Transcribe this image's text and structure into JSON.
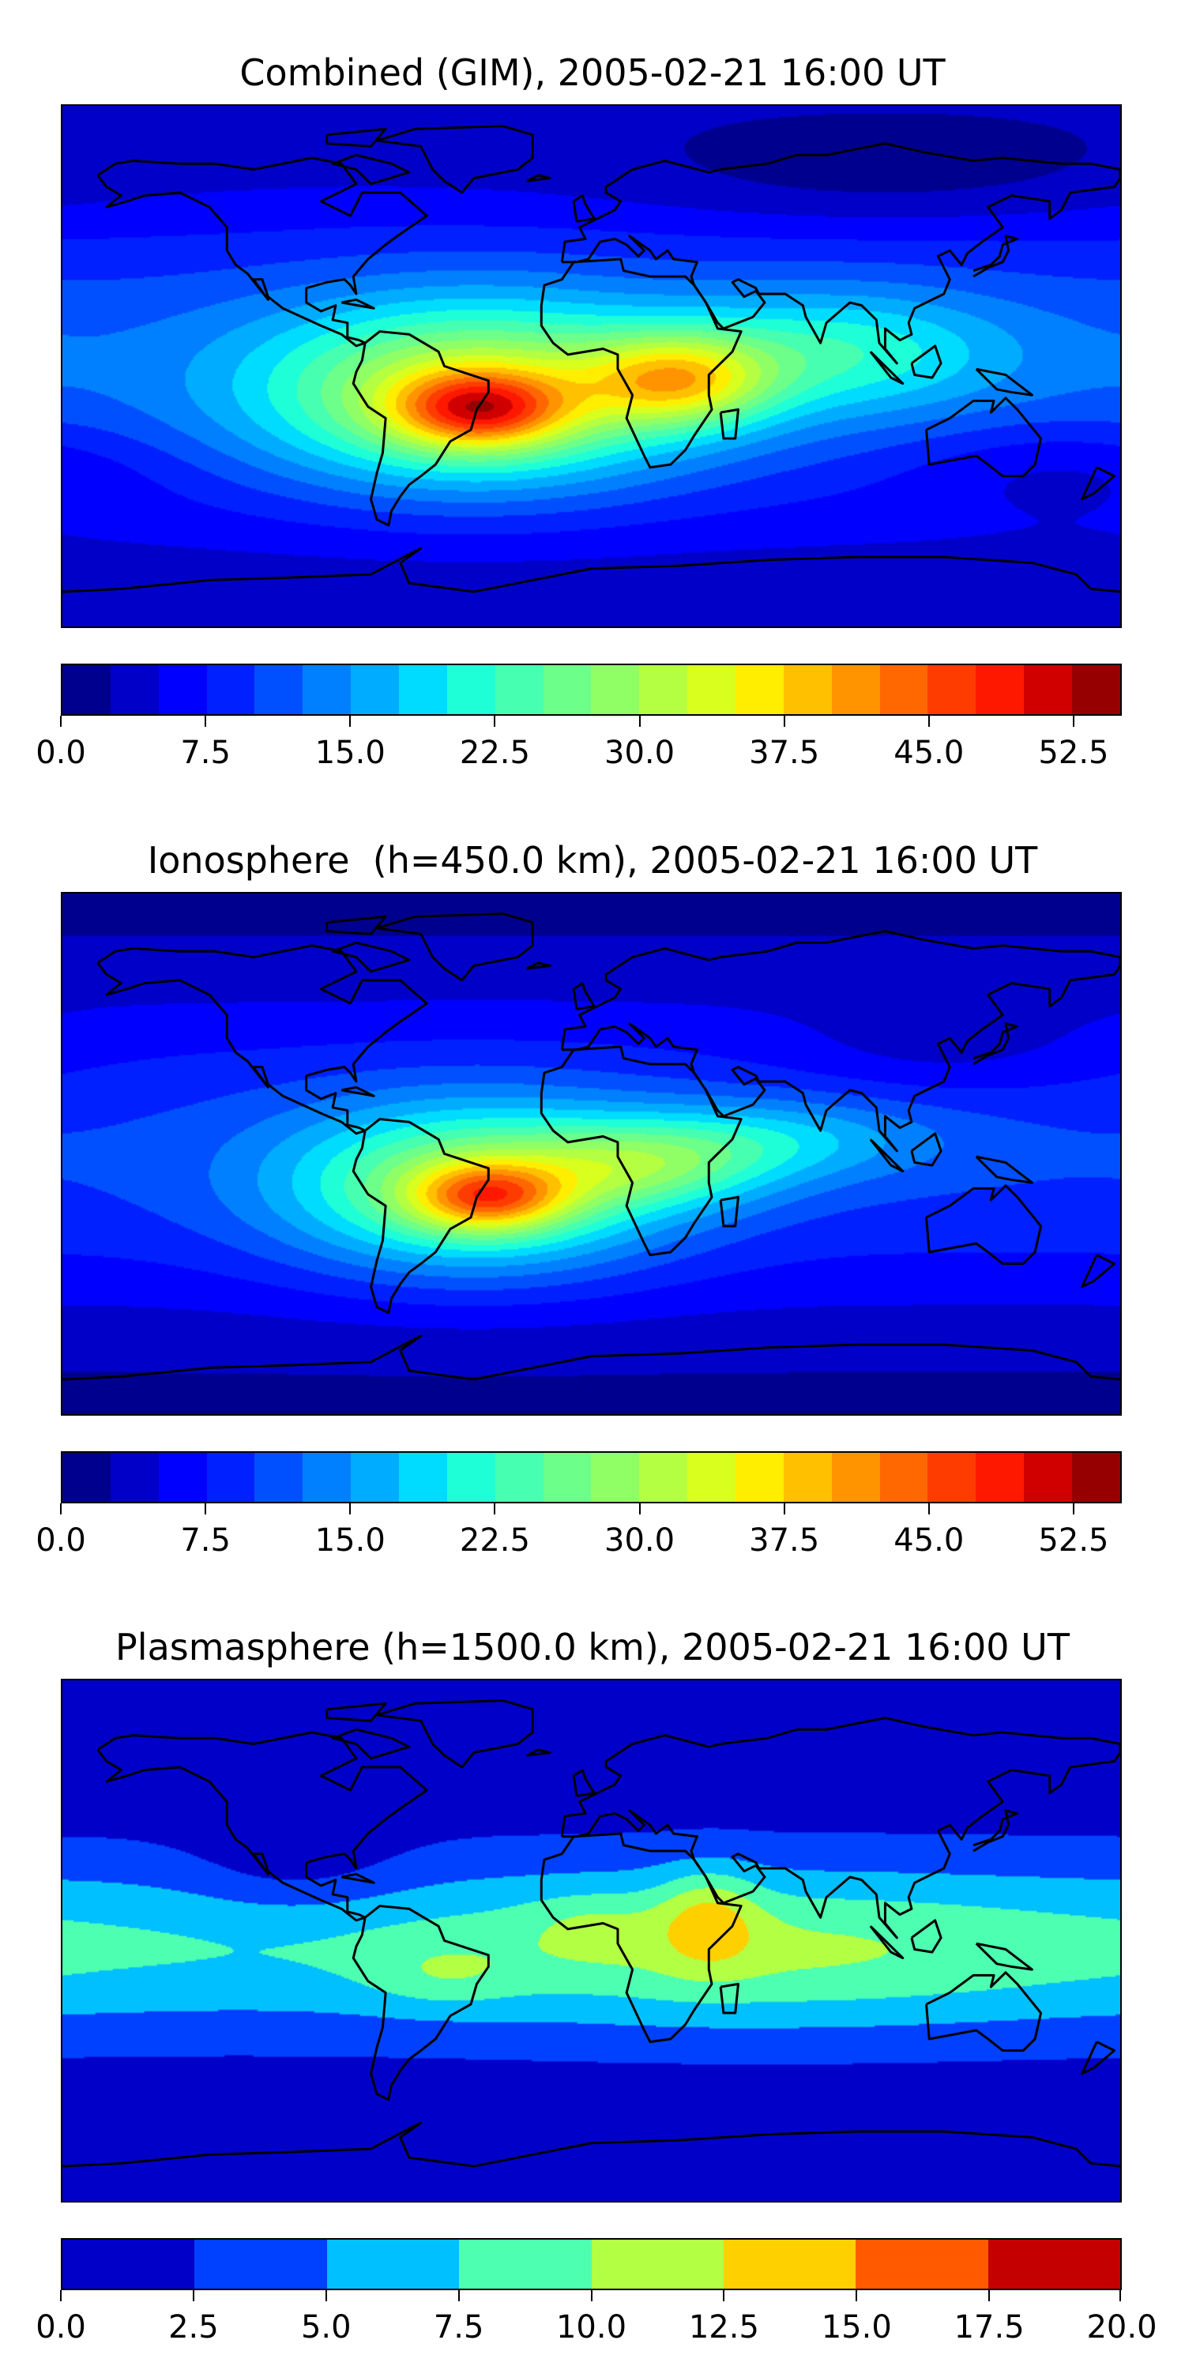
{
  "chart_data": [
    {
      "type": "heatmap",
      "title": "Combined (GIM), 2005-02-21 16:00 UT",
      "projection": "equirectangular world map with coastlines",
      "colorbar": {
        "range": [
          0,
          55
        ],
        "step": 2.5,
        "ticks": [
          "0.0",
          "7.5",
          "15.0",
          "22.5",
          "30.0",
          "37.5",
          "45.0",
          "52.5"
        ],
        "tick_values": [
          0,
          7.5,
          15,
          22.5,
          30,
          37.5,
          45,
          52.5
        ],
        "colors": [
          "#00008f",
          "#0000c8",
          "#0000ff",
          "#0020ff",
          "#0050ff",
          "#0080ff",
          "#00acff",
          "#00dcff",
          "#1effd8",
          "#47ffb0",
          "#6cff8a",
          "#90ff66",
          "#b4ff42",
          "#d8ff1e",
          "#ffee00",
          "#ffc000",
          "#ff9400",
          "#ff6800",
          "#ff3c00",
          "#ff1800",
          "#d00000",
          "#960000"
        ]
      },
      "max_region": "South America / South Atlantic (~50-52.5)"
    },
    {
      "type": "heatmap",
      "title": "Ionosphere  (h=450.0 km), 2005-02-21 16:00 UT",
      "projection": "equirectangular world map with coastlines",
      "colorbar": {
        "range": [
          0,
          55
        ],
        "step": 2.5,
        "ticks": [
          "0.0",
          "7.5",
          "15.0",
          "22.5",
          "30.0",
          "37.5",
          "45.0",
          "52.5"
        ],
        "tick_values": [
          0,
          7.5,
          15,
          22.5,
          30,
          37.5,
          45,
          52.5
        ],
        "colors": [
          "#00008f",
          "#0000c8",
          "#0000ff",
          "#0020ff",
          "#0050ff",
          "#0080ff",
          "#00acff",
          "#00dcff",
          "#1effd8",
          "#47ffb0",
          "#6cff8a",
          "#90ff66",
          "#b4ff42",
          "#d8ff1e",
          "#ffee00",
          "#ffc000",
          "#ff9400",
          "#ff6800",
          "#ff3c00",
          "#ff1800",
          "#d00000",
          "#960000"
        ]
      },
      "max_region": "Eastern Brazil (~45-47.5)"
    },
    {
      "type": "heatmap",
      "title": "Plasmasphere (h=1500.0 km), 2005-02-21 16:00 UT",
      "projection": "equirectangular world map with coastlines",
      "colorbar": {
        "range": [
          0,
          20
        ],
        "step": 2.5,
        "ticks": [
          "0.0",
          "2.5",
          "5.0",
          "7.5",
          "10.0",
          "12.5",
          "15.0",
          "17.5",
          "20.0"
        ],
        "tick_values": [
          0,
          2.5,
          5,
          7.5,
          10,
          12.5,
          15,
          17.5,
          20
        ],
        "colors": [
          "#0000c8",
          "#0040ff",
          "#00c0ff",
          "#4dffb0",
          "#b2ff44",
          "#ffd000",
          "#ff5a00",
          "#c40000"
        ]
      },
      "max_region": "East Africa / Ethiopia (~12.5-15)"
    }
  ]
}
